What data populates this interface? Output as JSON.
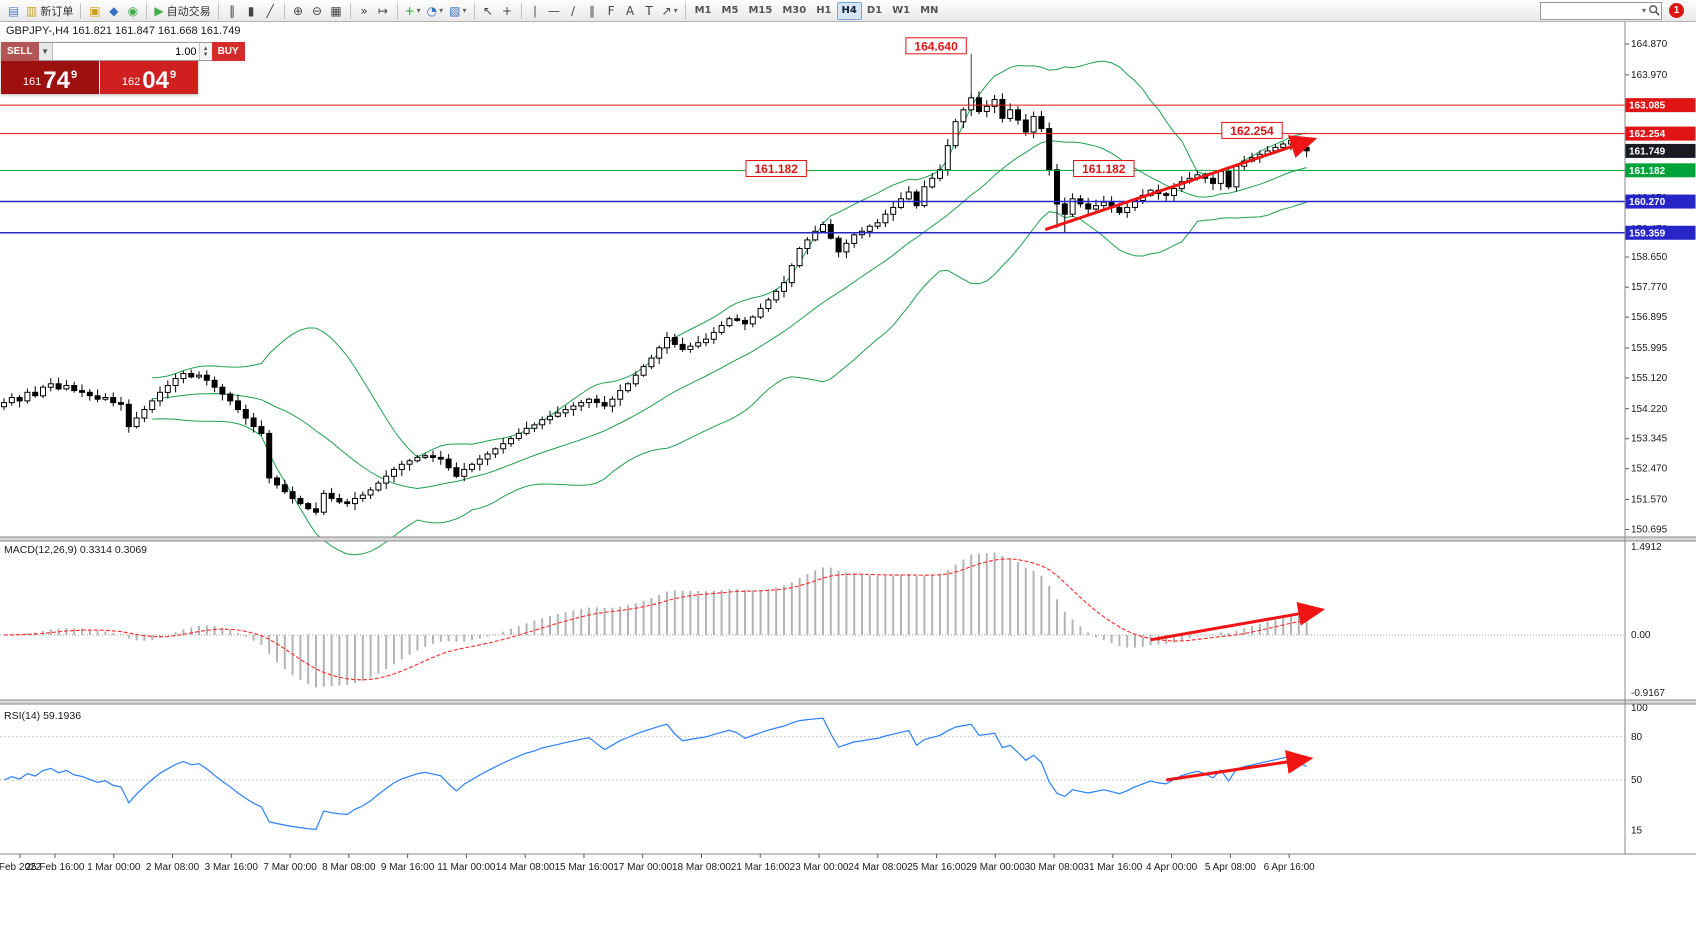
{
  "toolbar": {
    "dropdown_glyph": "▾",
    "notification_count": "1",
    "search_placeholder": "",
    "items": [
      {
        "type": "btn",
        "name": "new-chart-button",
        "glyph": "▤",
        "color": "#5a7ec4"
      },
      {
        "type": "btn",
        "name": "new-order-button",
        "glyph": "▥",
        "color": "#c9a227",
        "label": "新订单"
      },
      {
        "type": "sep"
      },
      {
        "type": "btn",
        "name": "profiles-button",
        "glyph": "▣",
        "color": "#c9a227"
      },
      {
        "type": "btn",
        "name": "market-watch-button",
        "glyph": "◆",
        "color": "#3b6fc4"
      },
      {
        "type": "btn",
        "name": "data-window-button",
        "glyph": "◉",
        "color": "#3fae49"
      },
      {
        "type": "sep"
      },
      {
        "type": "btn",
        "name": "autotrading-button",
        "glyph": "▶",
        "color": "#3fae49",
        "label": "自动交易"
      },
      {
        "type": "sep"
      },
      {
        "type": "btn",
        "name": "bar-chart-button",
        "glyph": "‖"
      },
      {
        "type": "btn",
        "name": "candlestick-chart-button",
        "glyph": "▮"
      },
      {
        "type": "btn",
        "name": "line-chart-button",
        "glyph": "╱"
      },
      {
        "type": "sep"
      },
      {
        "type": "btn",
        "name": "zoom-in-button",
        "glyph": "⊕"
      },
      {
        "type": "btn",
        "name": "zoom-out-button",
        "glyph": "⊖"
      },
      {
        "type": "btn",
        "name": "tile-windows-button",
        "glyph": "▦"
      },
      {
        "type": "sep"
      },
      {
        "type": "btn",
        "name": "auto-scroll-button",
        "glyph": "»"
      },
      {
        "type": "btn",
        "name": "chart-shift-button",
        "glyph": "↦"
      },
      {
        "type": "sep"
      },
      {
        "type": "btn",
        "name": "indicators-button",
        "glyph": "+",
        "color": "#1faa1f",
        "dropdown": true
      },
      {
        "type": "btn",
        "name": "periods-button",
        "glyph": "◔",
        "color": "#3b6fc4",
        "dropdown": true
      },
      {
        "type": "btn",
        "name": "templates-button",
        "glyph": "▧",
        "color": "#3b6fc4",
        "dropdown": true
      },
      {
        "type": "sep"
      },
      {
        "type": "btn",
        "name": "cursor-button",
        "glyph": "↖"
      },
      {
        "type": "btn",
        "name": "crosshair-button",
        "glyph": "+"
      },
      {
        "type": "sep"
      },
      {
        "type": "btn",
        "name": "vertical-line-button",
        "glyph": "∣"
      },
      {
        "type": "btn",
        "name": "horizontal-line-button",
        "glyph": "—"
      },
      {
        "type": "btn",
        "name": "trendline-button",
        "glyph": "∕"
      },
      {
        "type": "btn",
        "name": "channel-button",
        "glyph": "∥"
      },
      {
        "type": "btn",
        "name": "fibonacci-button",
        "glyph": "F"
      },
      {
        "type": "btn",
        "name": "text-button",
        "glyph": "A"
      },
      {
        "type": "btn",
        "name": "label-button",
        "glyph": "T"
      },
      {
        "type": "btn",
        "name": "arrows-button",
        "glyph": "↗",
        "dropdown": true
      },
      {
        "type": "sep"
      },
      {
        "type": "tf",
        "name": "timeframe-m1",
        "label": "M1"
      },
      {
        "type": "tf",
        "name": "timeframe-m5",
        "label": "M5"
      },
      {
        "type": "tf",
        "name": "timeframe-m15",
        "label": "M15"
      },
      {
        "type": "tf",
        "name": "timeframe-m30",
        "label": "M30"
      },
      {
        "type": "tf",
        "name": "timeframe-h1",
        "label": "H1"
      },
      {
        "type": "tf",
        "name": "timeframe-h4",
        "label": "H4",
        "active": true
      },
      {
        "type": "tf",
        "name": "timeframe-d1",
        "label": "D1"
      },
      {
        "type": "tf",
        "name": "timeframe-w1",
        "label": "W1"
      },
      {
        "type": "tf",
        "name": "timeframe-mn",
        "label": "MN"
      }
    ]
  },
  "chart_header": {
    "ohlc_line": "GBPJPY-,H4  161.821 161.847 161.668 161.749"
  },
  "trade_panel": {
    "sell_label": "SELL",
    "buy_label": "BUY",
    "volume": "1.00",
    "dropdown_glyph": "▼",
    "spin_up": "▲",
    "spin_down": "▼",
    "sell_prefix": "161",
    "sell_big": "74",
    "sell_sup": "9",
    "buy_prefix": "162",
    "buy_big": "04",
    "buy_sup": "9"
  },
  "chart_data": {
    "type": "candlestick",
    "symbol": "GBPJPY-",
    "timeframe": "H4",
    "closes": [
      154.4,
      154.55,
      154.45,
      154.7,
      154.6,
      154.85,
      154.95,
      154.8,
      154.9,
      154.75,
      154.7,
      154.6,
      154.5,
      154.55,
      154.4,
      154.35,
      153.7,
      153.95,
      154.2,
      154.45,
      154.7,
      154.9,
      155.1,
      155.25,
      155.15,
      155.2,
      155.05,
      154.85,
      154.65,
      154.45,
      154.2,
      153.95,
      153.7,
      153.5,
      152.2,
      152.0,
      151.8,
      151.6,
      151.45,
      151.3,
      151.2,
      151.75,
      151.6,
      151.5,
      151.45,
      151.6,
      151.7,
      151.85,
      152.05,
      152.25,
      152.45,
      152.6,
      152.7,
      152.8,
      152.85,
      152.8,
      152.75,
      152.5,
      152.25,
      152.45,
      152.6,
      152.75,
      152.9,
      153.05,
      153.2,
      153.35,
      153.5,
      153.65,
      153.75,
      153.9,
      154.0,
      154.1,
      154.2,
      154.3,
      154.4,
      154.5,
      154.4,
      154.3,
      154.5,
      154.75,
      154.95,
      155.2,
      155.45,
      155.7,
      156.0,
      156.3,
      156.1,
      155.95,
      156.05,
      156.15,
      156.25,
      156.45,
      156.65,
      156.85,
      156.8,
      156.7,
      156.9,
      157.15,
      157.4,
      157.65,
      157.9,
      158.4,
      158.9,
      159.15,
      159.4,
      159.6,
      159.2,
      158.8,
      159.05,
      159.3,
      159.4,
      159.55,
      159.65,
      159.9,
      160.1,
      160.35,
      160.55,
      160.15,
      160.7,
      160.95,
      161.2,
      161.9,
      162.6,
      162.95,
      163.3,
      162.9,
      163.05,
      163.25,
      162.7,
      162.95,
      162.65,
      162.3,
      162.75,
      162.4,
      161.2,
      160.2,
      159.9,
      160.35,
      160.2,
      160.05,
      160.15,
      160.25,
      160.1,
      159.95,
      160.1,
      160.3,
      160.45,
      160.6,
      160.5,
      160.45,
      160.65,
      160.85,
      160.95,
      161.05,
      160.95,
      160.8,
      161.15,
      160.7,
      161.3,
      161.45,
      161.55,
      161.65,
      161.75,
      161.85,
      161.95,
      162.05,
      161.85,
      161.75
    ],
    "special_highs": {
      "124": 163.45
    },
    "special_lows": {
      "135": 159.5,
      "136": 159.36
    },
    "indicators": {
      "bollinger": {
        "period": 20,
        "deviation": 2,
        "color": "#1fa04d"
      },
      "macd": {
        "label": "MACD(12,26,9) 0.3314 0.3069",
        "fast": 12,
        "slow": 26,
        "signal": 9,
        "axis_max": "1.4912",
        "axis_zero": "0.00",
        "axis_min": "-0.9167"
      },
      "rsi": {
        "label": "RSI(14) 59.1936",
        "period": 14,
        "current": "59.1936",
        "levels": [
          100,
          80,
          50,
          15
        ]
      }
    },
    "price_axis_ticks": [
      "164.870",
      "163.970",
      "163.070",
      "162.170",
      "161.270",
      "160.370",
      "159.470",
      "158.650",
      "157.770",
      "156.895",
      "155.995",
      "155.120",
      "154.220",
      "153.345",
      "152.470",
      "151.570",
      "150.695"
    ],
    "price_levels": [
      {
        "price": 163.085,
        "label": "163.085",
        "color": "#e01414",
        "line": true,
        "width": 1
      },
      {
        "price": 162.254,
        "label": "162.254",
        "color": "#e01414",
        "line": true,
        "width": 1
      },
      {
        "price": 161.749,
        "label": "161.749",
        "color": "#1a1a24",
        "line": false,
        "width": 0
      },
      {
        "price": 161.182,
        "label": "161.182",
        "color": "#00a33a",
        "line": true,
        "width": 1
      },
      {
        "price": 160.27,
        "label": "160.270",
        "color": "#2525c8",
        "line": true,
        "width": 1.5
      },
      {
        "price": 159.359,
        "label": "159.359",
        "color": "#2525c8",
        "line": true,
        "width": 1.5
      }
    ],
    "annotations": [
      {
        "text": "164.640",
        "bar": 119.5,
        "price_top": 165.05,
        "connector_bar": 124,
        "connector_price": 163.45
      },
      {
        "text": "161.182",
        "bar": 99,
        "price_top": 161.47
      },
      {
        "text": "161.182",
        "bar": 141,
        "price_top": 161.47
      },
      {
        "text": "162.254",
        "bar": 160,
        "price_top": 162.58
      }
    ],
    "trend_arrows": [
      {
        "panel": "price",
        "from_bar": 133.5,
        "from_value": 159.45,
        "to_bar": 168,
        "to_value": 162.1
      },
      {
        "panel": "macd",
        "from_bar": 147,
        "from_value": -0.08,
        "to_bar": 169,
        "to_value": 0.42
      },
      {
        "panel": "rsi",
        "from_bar": 149,
        "from_value": 50,
        "to_bar": 167.5,
        "to_value": 65
      }
    ],
    "time_labels": [
      "Feb 2022",
      "25 Feb 16:00",
      "1 Mar 00:00",
      "2 Mar 08:00",
      "3 Mar 16:00",
      "7 Mar 00:00",
      "8 Mar 08:00",
      "9 Mar 16:00",
      "11 Mar 00:00",
      "14 Mar 08:00",
      "15 Mar 16:00",
      "17 Mar 00:00",
      "18 Mar 08:00",
      "21 Mar 16:00",
      "23 Mar 00:00",
      "24 Mar 08:00",
      "25 Mar 16:00",
      "29 Mar 00:00",
      "30 Mar 08:00",
      "31 Mar 16:00",
      "4 Apr 00:00",
      "5 Apr 08:00",
      "6 Apr 16:00"
    ]
  }
}
